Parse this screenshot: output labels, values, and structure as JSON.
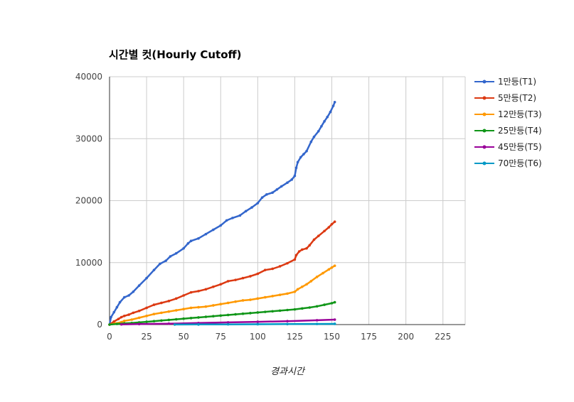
{
  "chart_data": {
    "type": "line",
    "title": "시간별 컷(Hourly Cutoff)",
    "xlabel": "경과시간",
    "ylabel": "",
    "xlim": [
      0,
      240
    ],
    "ylim": [
      0,
      40000
    ],
    "x_ticks": [
      0,
      25,
      50,
      75,
      100,
      125,
      150,
      175,
      200,
      225
    ],
    "y_ticks": [
      0,
      10000,
      20000,
      30000,
      40000
    ],
    "grid": true,
    "legend_position": "right",
    "series": [
      {
        "name": "1만등(T1)",
        "color": "#3366cc",
        "x": [
          0,
          1,
          3,
          5,
          7,
          10,
          13,
          16,
          20,
          25,
          30,
          34,
          38,
          41,
          45,
          50,
          53,
          55,
          60,
          65,
          70,
          75,
          79,
          83,
          88,
          92,
          96,
          100,
          103,
          106,
          110,
          113,
          116,
          120,
          123,
          125,
          126,
          127,
          129,
          131,
          133,
          136,
          138,
          141,
          143,
          145,
          147,
          149,
          151,
          152
        ],
        "y": [
          0,
          1200,
          2000,
          2800,
          3600,
          4400,
          4700,
          5300,
          6300,
          7500,
          8800,
          9800,
          10300,
          11000,
          11500,
          12300,
          13100,
          13500,
          13900,
          14600,
          15300,
          16000,
          16800,
          17200,
          17600,
          18300,
          18900,
          19600,
          20500,
          21000,
          21300,
          21800,
          22300,
          22900,
          23400,
          24000,
          25300,
          26200,
          27000,
          27500,
          28000,
          29500,
          30300,
          31200,
          32000,
          32800,
          33500,
          34300,
          35300,
          35900
        ]
      },
      {
        "name": "5만등(T2)",
        "color": "#dc3912",
        "x": [
          0,
          3,
          6,
          8,
          10,
          13,
          16,
          20,
          25,
          30,
          35,
          40,
          45,
          50,
          55,
          60,
          65,
          70,
          75,
          80,
          85,
          90,
          95,
          100,
          105,
          110,
          115,
          120,
          125,
          126,
          128,
          130,
          133,
          135,
          138,
          141,
          145,
          148,
          150,
          152
        ],
        "y": [
          0,
          500,
          900,
          1200,
          1400,
          1600,
          1900,
          2200,
          2700,
          3200,
          3500,
          3800,
          4200,
          4700,
          5200,
          5400,
          5700,
          6100,
          6500,
          7000,
          7200,
          7500,
          7800,
          8200,
          8800,
          9000,
          9400,
          9900,
          10500,
          11200,
          11800,
          12100,
          12300,
          12800,
          13700,
          14300,
          15100,
          15700,
          16200,
          16600
        ]
      },
      {
        "name": "12만등(T3)",
        "color": "#ff9900",
        "x": [
          0,
          4,
          8,
          10,
          15,
          20,
          25,
          30,
          35,
          40,
          45,
          50,
          55,
          60,
          65,
          70,
          75,
          80,
          85,
          90,
          95,
          100,
          105,
          110,
          115,
          120,
          125,
          127,
          130,
          133,
          136,
          140,
          144,
          148,
          150,
          152
        ],
        "y": [
          0,
          200,
          400,
          600,
          800,
          1100,
          1400,
          1700,
          1900,
          2100,
          2300,
          2500,
          2700,
          2800,
          2900,
          3100,
          3300,
          3500,
          3700,
          3900,
          4000,
          4200,
          4400,
          4600,
          4800,
          5000,
          5300,
          5700,
          6100,
          6500,
          7000,
          7700,
          8300,
          8900,
          9200,
          9500
        ]
      },
      {
        "name": "25만등(T4)",
        "color": "#109618",
        "x": [
          0,
          5,
          10,
          15,
          20,
          25,
          30,
          35,
          40,
          45,
          50,
          55,
          60,
          65,
          70,
          75,
          80,
          85,
          90,
          95,
          100,
          105,
          110,
          115,
          120,
          125,
          130,
          135,
          140,
          145,
          150,
          152
        ],
        "y": [
          0,
          100,
          200,
          250,
          350,
          450,
          550,
          650,
          750,
          850,
          950,
          1050,
          1150,
          1250,
          1350,
          1450,
          1550,
          1650,
          1750,
          1850,
          1950,
          2050,
          2150,
          2250,
          2350,
          2450,
          2600,
          2750,
          2950,
          3200,
          3450,
          3600
        ]
      },
      {
        "name": "45만등(T5)",
        "color": "#990099",
        "x": [
          8,
          20,
          40,
          60,
          80,
          100,
          120,
          140,
          152
        ],
        "y": [
          30,
          80,
          150,
          250,
          350,
          450,
          550,
          700,
          800
        ]
      },
      {
        "name": "70만등(T6)",
        "color": "#0099c6",
        "x": [
          44,
          60,
          80,
          100,
          120,
          140,
          152
        ],
        "y": [
          10,
          20,
          40,
          60,
          80,
          100,
          120
        ]
      }
    ]
  }
}
